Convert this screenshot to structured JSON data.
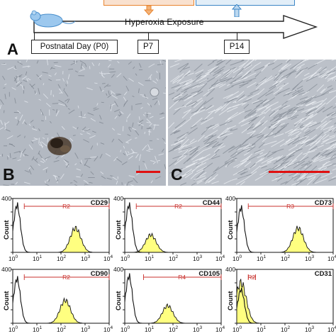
{
  "figure": {
    "panel_labels": {
      "a": "A",
      "b": "B",
      "c": "C"
    },
    "timeline": {
      "exposure_label": "Hyperoxia Exposure",
      "start_label": "Postnatal Day (P0)",
      "day1_label": "P7",
      "day2_label": "P14"
    },
    "colors": {
      "orange_box": "#e9842f",
      "blue_box": "#3d86c6",
      "scale_bar": "#e01010",
      "histogram_fill": "#ffff80",
      "gate": "#c9302c"
    }
  },
  "chart_data": [
    {
      "type": "area",
      "marker": "CD29",
      "ylabel": "Count",
      "xscale": "log",
      "xlim": [
        1,
        10000
      ],
      "ylim": [
        0,
        400
      ],
      "yticks": [
        "0",
        "100",
        "200",
        "300",
        "400"
      ],
      "xticks": [
        "10",
        "10",
        "10",
        "10",
        "10"
      ],
      "xtick_exponents": [
        "0",
        "1",
        "2",
        "3",
        "4"
      ],
      "gate": {
        "label": "R2",
        "range": [
          3,
          10000
        ]
      },
      "control_peak": {
        "x": 1.5,
        "y": 350
      },
      "sample_peak": {
        "x": 400,
        "y": 180
      }
    },
    {
      "type": "area",
      "marker": "CD44",
      "ylabel": "Count",
      "xscale": "log",
      "xlim": [
        1,
        10000
      ],
      "ylim": [
        0,
        400
      ],
      "yticks": [
        "0",
        "100",
        "200",
        "300",
        "400"
      ],
      "xticks": [
        "10",
        "10",
        "10",
        "10",
        "10"
      ],
      "xtick_exponents": [
        "0",
        "1",
        "2",
        "3",
        "4"
      ],
      "gate": {
        "label": "R2",
        "range": [
          3,
          10000
        ]
      },
      "control_peak": {
        "x": 1.5,
        "y": 350
      },
      "sample_peak": {
        "x": 12,
        "y": 130
      }
    },
    {
      "type": "area",
      "marker": "CD73",
      "ylabel": "Count",
      "xscale": "log",
      "xlim": [
        1,
        10000
      ],
      "ylim": [
        0,
        400
      ],
      "yticks": [
        "0",
        "100",
        "200",
        "300",
        "400"
      ],
      "xticks": [
        "10",
        "10",
        "10",
        "10",
        "10"
      ],
      "xtick_exponents": [
        "0",
        "1",
        "2",
        "3",
        "4"
      ],
      "gate": {
        "label": "R3",
        "range": [
          3,
          10000
        ]
      },
      "control_peak": {
        "x": 1.5,
        "y": 330
      },
      "sample_peak": {
        "x": 350,
        "y": 180
      }
    },
    {
      "type": "area",
      "marker": "CD90",
      "ylabel": "Count",
      "xscale": "log",
      "xlim": [
        1,
        10000
      ],
      "ylim": [
        0,
        400
      ],
      "yticks": [
        "0",
        "100",
        "200",
        "300",
        "400"
      ],
      "xticks": [
        "10",
        "10",
        "10",
        "10",
        "10"
      ],
      "xtick_exponents": [
        "0",
        "1",
        "2",
        "3",
        "4"
      ],
      "gate": {
        "label": "R2",
        "range": [
          3,
          10000
        ]
      },
      "control_peak": {
        "x": 1.5,
        "y": 330
      },
      "sample_peak": {
        "x": 150,
        "y": 170
      }
    },
    {
      "type": "area",
      "marker": "CD105",
      "ylabel": "Count",
      "xscale": "log",
      "xlim": [
        1,
        10000
      ],
      "ylim": [
        0,
        400
      ],
      "yticks": [
        "0",
        "100",
        "200",
        "300",
        "400"
      ],
      "xticks": [
        "10",
        "10",
        "10",
        "10",
        "10"
      ],
      "xtick_exponents": [
        "0",
        "1",
        "2",
        "3",
        "4"
      ],
      "gate": {
        "label": "R4",
        "range": [
          6,
          10000
        ]
      },
      "control_peak": {
        "x": 1.5,
        "y": 350
      },
      "sample_peak": {
        "x": 60,
        "y": 130
      }
    },
    {
      "type": "area",
      "marker": "CD31",
      "ylabel": "Count",
      "xscale": "log",
      "xlim": [
        1,
        10000
      ],
      "ylim": [
        0,
        400
      ],
      "yticks": [
        "0",
        "100",
        "200",
        "300",
        "400"
      ],
      "xticks": [
        "10",
        "10",
        "10",
        "10",
        "10"
      ],
      "xtick_exponents": [
        "0",
        "1",
        "2",
        "3",
        "4"
      ],
      "gate": {
        "label": "R2",
        "range": [
          3,
          6
        ]
      },
      "control_peak": {
        "x": 1.5,
        "y": 250
      },
      "sample_peak": {
        "x": 1.5,
        "y": 300
      }
    }
  ]
}
